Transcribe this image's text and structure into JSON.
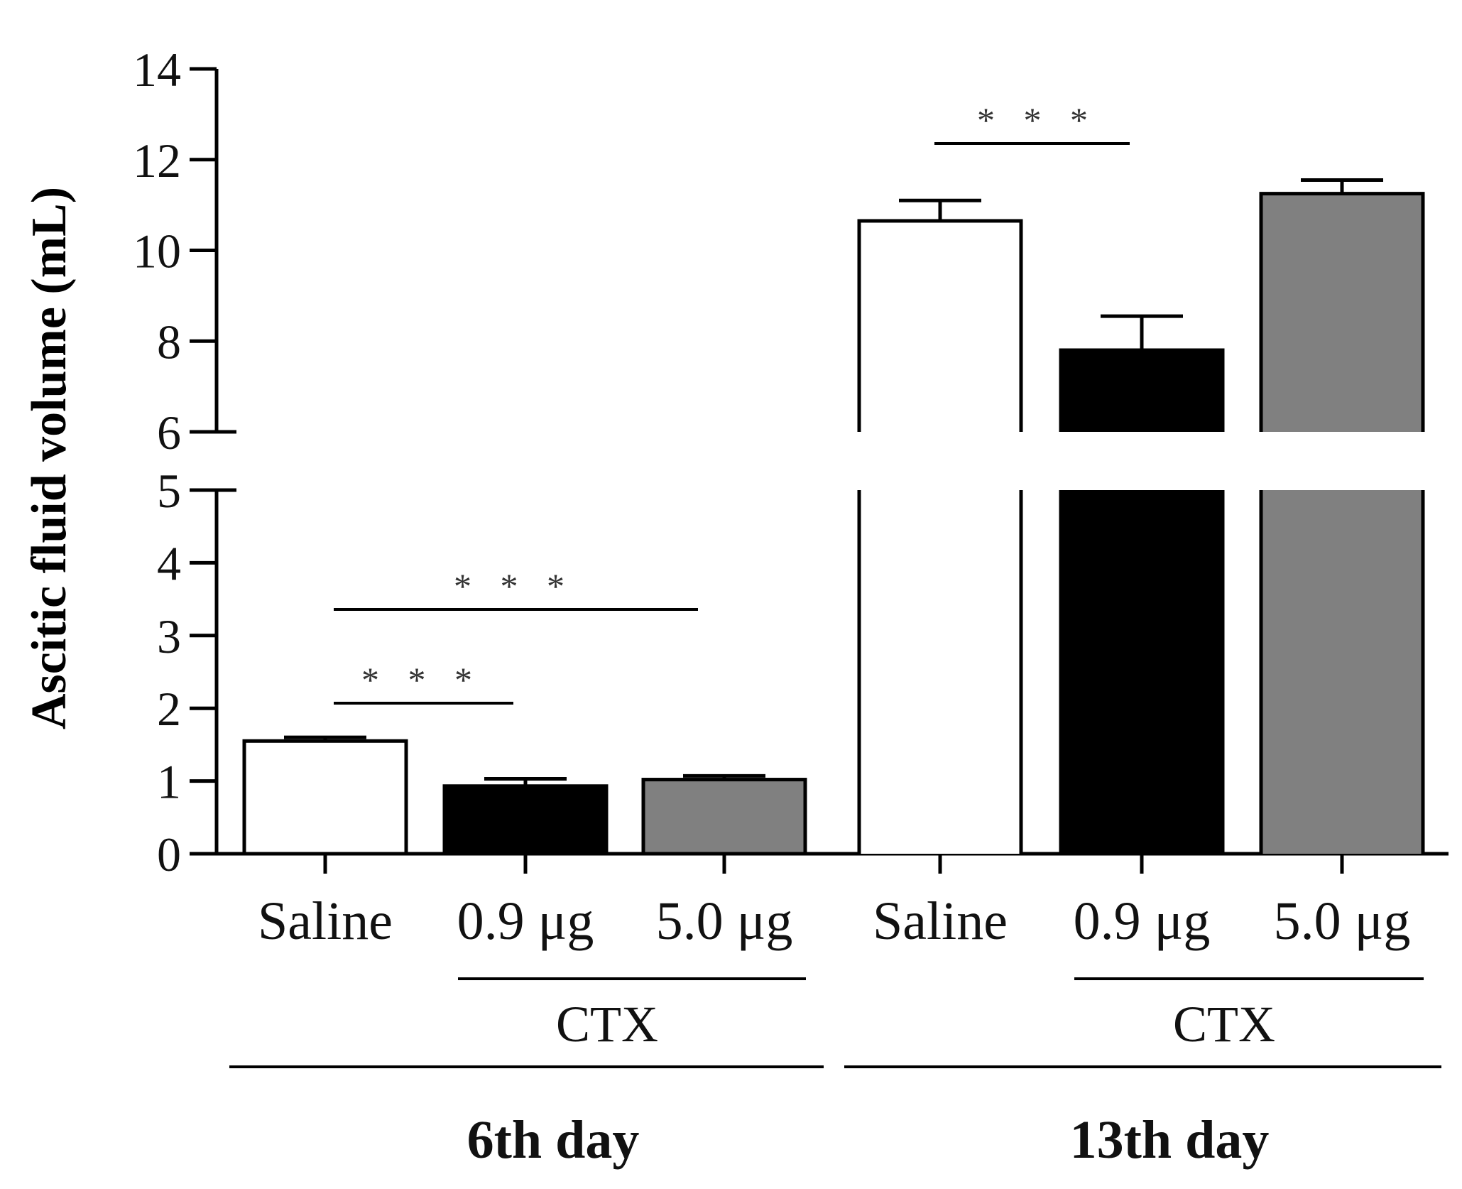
{
  "chart_data": {
    "type": "bar",
    "ylabel": "Ascitic fluid volume (mL)",
    "ylim": [
      0,
      14
    ],
    "axis_break": [
      5,
      6
    ],
    "yticks_lower": [
      0,
      1,
      2,
      3,
      4,
      5
    ],
    "yticks_upper": [
      6,
      8,
      10,
      12,
      14
    ],
    "grid": false,
    "groups": [
      {
        "label": "6th day",
        "subgroup_label": "CTX",
        "bars": [
          {
            "category": "Saline",
            "value": 1.55,
            "error": 0.05,
            "fill": "white"
          },
          {
            "category": "0.9 μg",
            "value": 0.93,
            "error": 0.1,
            "fill": "black"
          },
          {
            "category": "5.0 μg",
            "value": 1.02,
            "error": 0.05,
            "fill": "gray"
          }
        ],
        "significance": [
          {
            "from": 0,
            "to": 1,
            "label": "* * *"
          },
          {
            "from": 0,
            "to": 2,
            "label": "* * *"
          }
        ]
      },
      {
        "label": "13th day",
        "subgroup_label": "CTX",
        "bars": [
          {
            "category": "Saline",
            "value": 10.65,
            "error": 0.45,
            "fill": "white"
          },
          {
            "category": "0.9 μg",
            "value": 7.8,
            "error": 0.75,
            "fill": "black"
          },
          {
            "category": "5.0 μg",
            "value": 11.25,
            "error": 0.3,
            "fill": "gray"
          }
        ],
        "significance": [
          {
            "from": 0,
            "to": 1,
            "label": "* * *"
          }
        ]
      }
    ]
  },
  "colors": {
    "white": "#ffffff",
    "black": "#000000",
    "gray": "#808080",
    "axis": "#000000",
    "text": "#111111"
  }
}
